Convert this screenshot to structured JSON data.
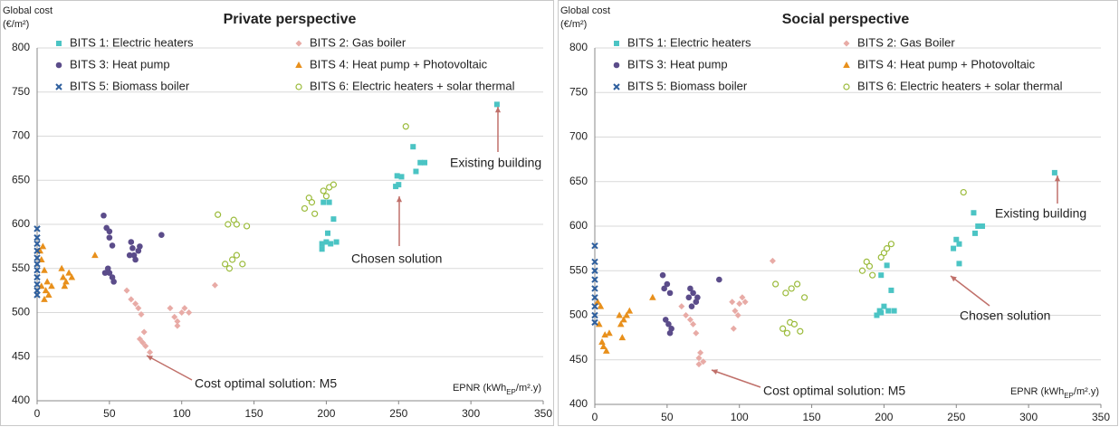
{
  "chart_data": [
    {
      "type": "scatter",
      "title": "Private perspective",
      "y_label": [
        "Global cost",
        "(€/m²)"
      ],
      "x_label": [
        "EPNR (kWh",
        "EP",
        "/m².y)"
      ],
      "xlim": [
        0,
        350
      ],
      "xticks": [
        0,
        50,
        100,
        150,
        200,
        250,
        300,
        350
      ],
      "ylim": [
        400,
        800
      ],
      "yticks": [
        400,
        450,
        500,
        550,
        600,
        650,
        700,
        750,
        800
      ],
      "grid": true,
      "annotations": [
        "Cost optimal solution: M5",
        "Chosen solution",
        "Existing building"
      ],
      "series": [
        {
          "name": "BITS 1: Electric heaters",
          "color": "#4bc4c4",
          "marker": "square",
          "x": [
            197,
            200,
            203,
            205,
            198,
            202,
            197,
            201,
            207,
            248,
            250,
            252,
            249,
            260,
            262,
            265,
            268,
            318
          ],
          "values": [
            578,
            580,
            578,
            606,
            625,
            625,
            572,
            590,
            580,
            643,
            645,
            654,
            655,
            688,
            660,
            670,
            670,
            736
          ]
        },
        {
          "name": "BITS 2: Gas boiler",
          "color": "#e8aba6",
          "marker": "diamond",
          "x": [
            62,
            65,
            68,
            70,
            72,
            74,
            71,
            73,
            75,
            78,
            92,
            95,
            97,
            100,
            102,
            105,
            97,
            123
          ],
          "values": [
            525,
            515,
            510,
            505,
            498,
            478,
            470,
            466,
            462,
            455,
            505,
            495,
            490,
            500,
            505,
            500,
            485,
            531
          ]
        },
        {
          "name": "BITS 3: Heat pump",
          "color": "#5b4c8a",
          "marker": "circle",
          "x": [
            46,
            48,
            50,
            50,
            52,
            49,
            50,
            52,
            53,
            47,
            65,
            66,
            67,
            70,
            71,
            68,
            64,
            86
          ],
          "values": [
            610,
            596,
            592,
            585,
            576,
            550,
            545,
            540,
            535,
            545,
            580,
            573,
            565,
            570,
            575,
            560,
            565,
            588
          ]
        },
        {
          "name": "BITS 4: Heat pump + Photovoltaic",
          "color": "#e8901c",
          "marker": "triangle",
          "x": [
            2,
            4,
            3,
            5,
            3,
            6,
            8,
            7,
            10,
            5,
            17,
            18,
            20,
            22,
            24,
            19,
            40
          ],
          "values": [
            570,
            575,
            560,
            548,
            530,
            525,
            520,
            535,
            530,
            515,
            550,
            540,
            535,
            545,
            540,
            530,
            565
          ]
        },
        {
          "name": "BITS 5: Biomass boiler",
          "color": "#2e5f9e",
          "marker": "x",
          "x": [
            0,
            0,
            0,
            0,
            0,
            0,
            0,
            0,
            0,
            0,
            0
          ],
          "values": [
            595,
            585,
            578,
            570,
            562,
            555,
            548,
            540,
            532,
            525,
            520
          ]
        },
        {
          "name": "BITS 6: Electric heaters + solar thermal",
          "color": "#9bbb3b",
          "marker": "open-circle",
          "x": [
            125,
            130,
            133,
            135,
            138,
            142,
            132,
            136,
            138,
            145,
            185,
            188,
            190,
            192,
            200,
            202,
            205,
            198,
            255
          ],
          "values": [
            611,
            555,
            550,
            560,
            565,
            555,
            600,
            605,
            600,
            598,
            618,
            630,
            625,
            612,
            632,
            642,
            645,
            638,
            711
          ]
        }
      ]
    },
    {
      "type": "scatter",
      "title": "Social perspective",
      "y_label": [
        "Global cost",
        "(€/m²)"
      ],
      "x_label": [
        "EPNR (kWh",
        "EP",
        "/m².y)"
      ],
      "xlim": [
        0,
        350
      ],
      "xticks": [
        0,
        50,
        100,
        150,
        200,
        250,
        300,
        350
      ],
      "ylim": [
        400,
        800
      ],
      "yticks": [
        400,
        450,
        500,
        550,
        600,
        650,
        700,
        750,
        800
      ],
      "grid": true,
      "annotations": [
        "Cost optimal solution: M5",
        "Chosen solution",
        "Existing building"
      ],
      "series": [
        {
          "name": "BITS 1: Electric heaters",
          "color": "#4bc4c4",
          "marker": "square",
          "x": [
            195,
            197,
            200,
            203,
            205,
            198,
            202,
            207,
            198,
            248,
            250,
            252,
            252,
            262,
            263,
            265,
            268,
            318
          ],
          "values": [
            500,
            505,
            510,
            505,
            528,
            545,
            556,
            505,
            503,
            575,
            585,
            580,
            558,
            615,
            592,
            600,
            600,
            660
          ]
        },
        {
          "name": "BITS 2: Gas Boiler",
          "color": "#e8aba6",
          "marker": "diamond",
          "x": [
            60,
            63,
            66,
            68,
            70,
            72,
            73,
            75,
            72,
            95,
            97,
            99,
            102,
            104,
            96,
            100,
            123
          ],
          "values": [
            510,
            500,
            495,
            490,
            480,
            452,
            458,
            448,
            445,
            515,
            505,
            500,
            520,
            515,
            485,
            513,
            561
          ]
        },
        {
          "name": "BITS 3: Heat pump",
          "color": "#5b4c8a",
          "marker": "circle",
          "x": [
            47,
            48,
            50,
            52,
            49,
            51,
            52,
            53,
            65,
            66,
            68,
            70,
            71,
            67,
            86
          ],
          "values": [
            545,
            530,
            535,
            525,
            495,
            490,
            480,
            485,
            520,
            530,
            525,
            515,
            520,
            510,
            540
          ]
        },
        {
          "name": "BITS 4: Heat pump + Photovoltaic",
          "color": "#e8901c",
          "marker": "triangle",
          "x": [
            2,
            4,
            3,
            5,
            6,
            8,
            7,
            10,
            17,
            18,
            20,
            22,
            24,
            19,
            40
          ],
          "values": [
            515,
            510,
            490,
            470,
            465,
            460,
            478,
            480,
            500,
            490,
            495,
            500,
            505,
            475,
            520
          ]
        },
        {
          "name": "BITS 5: Biomass boiler",
          "color": "#2e5f9e",
          "marker": "x",
          "x": [
            0,
            0,
            0,
            0,
            0,
            0,
            0,
            0,
            0
          ],
          "values": [
            578,
            560,
            550,
            540,
            530,
            520,
            510,
            500,
            492
          ]
        },
        {
          "name": "BITS 6: Electric heaters + solar thermal",
          "color": "#9bbb3b",
          "marker": "open-circle",
          "x": [
            125,
            130,
            133,
            135,
            138,
            142,
            132,
            136,
            140,
            145,
            185,
            188,
            190,
            192,
            200,
            202,
            205,
            198,
            255
          ],
          "values": [
            535,
            485,
            480,
            492,
            490,
            482,
            525,
            530,
            535,
            520,
            550,
            560,
            555,
            545,
            570,
            575,
            580,
            565,
            638
          ]
        }
      ]
    }
  ]
}
